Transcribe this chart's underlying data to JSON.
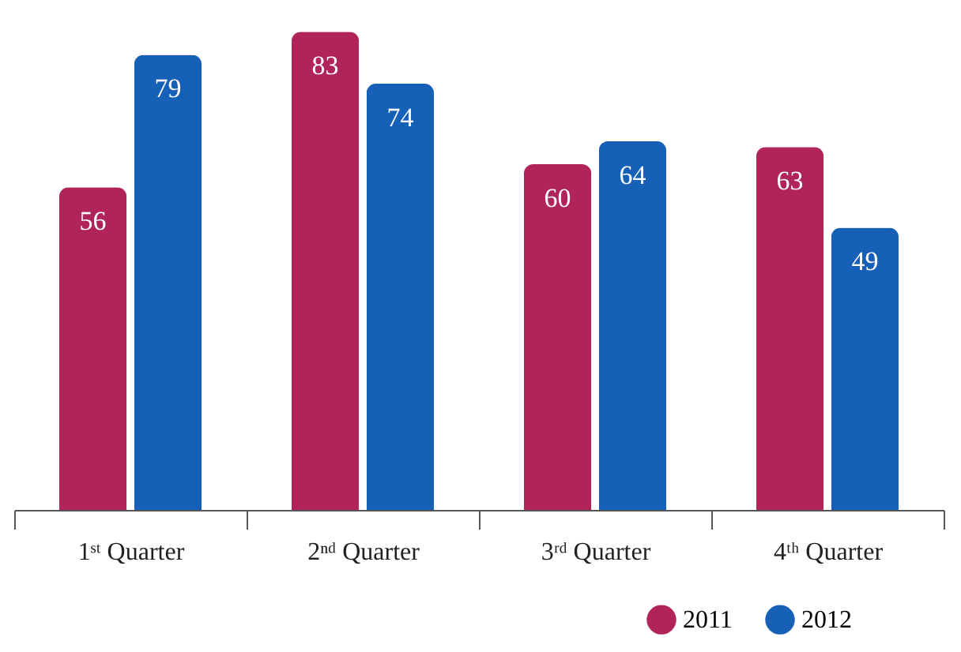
{
  "chart_data": {
    "type": "bar",
    "categories": [
      "1ˢᵗ Quarter",
      "2ⁿᵈ Quarter",
      "3ʳᵈ Quarter",
      "4ᵗʰ Quarter"
    ],
    "series": [
      {
        "name": "2011",
        "color": "#b0245a",
        "values": [
          56,
          83,
          60,
          63
        ]
      },
      {
        "name": "2012",
        "color": "#1660b8",
        "values": [
          79,
          74,
          64,
          49
        ]
      }
    ],
    "data_labels": true,
    "grid": false,
    "legend": "bottom right"
  }
}
